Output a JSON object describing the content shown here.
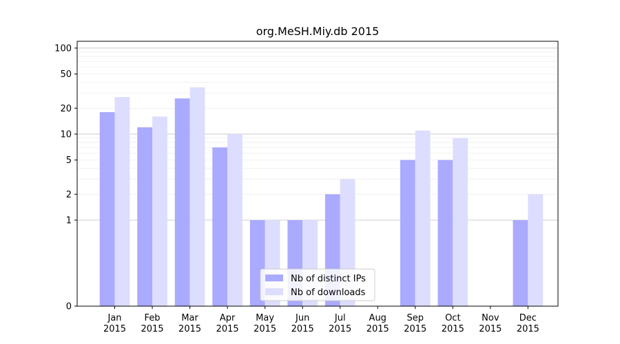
{
  "chart_data": {
    "type": "bar",
    "title": "org.MeSH.Miy.db 2015",
    "xlabel": "",
    "ylabel": "",
    "yscale": "symlog",
    "ylim": [
      0,
      120
    ],
    "yticks": [
      0,
      1,
      2,
      5,
      10,
      20,
      50,
      100
    ],
    "categories": [
      "Jan\n2015",
      "Feb\n2015",
      "Mar\n2015",
      "Apr\n2015",
      "May\n2015",
      "Jun\n2015",
      "Jul\n2015",
      "Aug\n2015",
      "Sep\n2015",
      "Oct\n2015",
      "Nov\n2015",
      "Dec\n2015"
    ],
    "series": [
      {
        "name": "Nb of distinct IPs",
        "color": "#aaaaff",
        "values": [
          18,
          12,
          26,
          7,
          1,
          1,
          2,
          0,
          5,
          5,
          0,
          1
        ]
      },
      {
        "name": "Nb of downloads",
        "color": "#ddddff",
        "values": [
          27,
          16,
          35,
          10,
          1,
          1,
          3,
          0,
          11,
          9,
          0,
          2
        ]
      }
    ],
    "legend_position": "lower-center",
    "grid": true
  }
}
